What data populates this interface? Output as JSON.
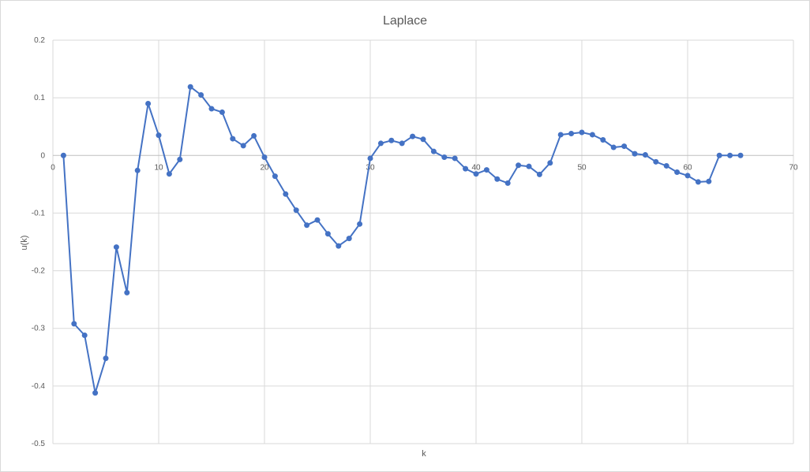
{
  "chart_data": {
    "type": "scatter",
    "title": "Laplace",
    "xlabel": "k",
    "ylabel": "u(k)",
    "xlim": [
      0,
      70
    ],
    "ylim": [
      -0.5,
      0.2
    ],
    "xticks": [
      0,
      10,
      20,
      30,
      40,
      50,
      60,
      70
    ],
    "yticks": [
      0.2,
      0.1,
      0,
      -0.1,
      -0.2,
      -0.3,
      -0.4,
      -0.5
    ],
    "xtick_labels": [
      "0",
      "10",
      "20",
      "30",
      "40",
      "50",
      "60",
      "70"
    ],
    "ytick_labels": [
      "0.2",
      "0.1",
      "0",
      "-0.1",
      "-0.2",
      "-0.3",
      "-0.4",
      "-0.5"
    ],
    "grid": true,
    "style": "lines-with-markers",
    "color": "#4472C4",
    "series": [
      {
        "x": [
          1,
          2,
          3,
          4,
          5,
          6,
          7,
          8,
          9,
          10,
          11,
          12,
          13,
          14,
          15,
          16,
          17,
          18,
          19,
          20,
          21,
          22,
          23,
          24,
          25,
          26,
          27,
          28,
          29,
          30,
          31,
          32,
          33,
          34,
          35,
          36,
          37,
          38,
          39,
          40,
          41,
          42,
          43,
          44,
          45,
          46,
          47,
          48,
          49,
          50,
          51,
          52,
          53,
          54,
          55,
          56,
          57,
          58,
          59,
          60,
          61,
          62,
          63,
          64,
          65
        ],
        "y": [
          0.0,
          -0.292,
          -0.312,
          -0.412,
          -0.352,
          -0.159,
          -0.238,
          -0.026,
          0.09,
          0.035,
          -0.032,
          -0.007,
          0.119,
          0.105,
          0.081,
          0.075,
          0.029,
          0.017,
          0.034,
          -0.003,
          -0.036,
          -0.067,
          -0.095,
          -0.121,
          -0.112,
          -0.136,
          -0.157,
          -0.144,
          -0.119,
          -0.005,
          0.021,
          0.026,
          0.021,
          0.033,
          0.028,
          0.007,
          -0.003,
          -0.005,
          -0.023,
          -0.032,
          -0.025,
          -0.041,
          -0.048,
          -0.017,
          -0.019,
          -0.033,
          -0.013,
          0.036,
          0.038,
          0.04,
          0.036,
          0.027,
          0.014,
          0.016,
          0.003,
          0.001,
          -0.011,
          -0.018,
          -0.029,
          -0.035,
          -0.046,
          -0.045,
          0.0,
          0.0,
          0.0
        ]
      }
    ]
  }
}
